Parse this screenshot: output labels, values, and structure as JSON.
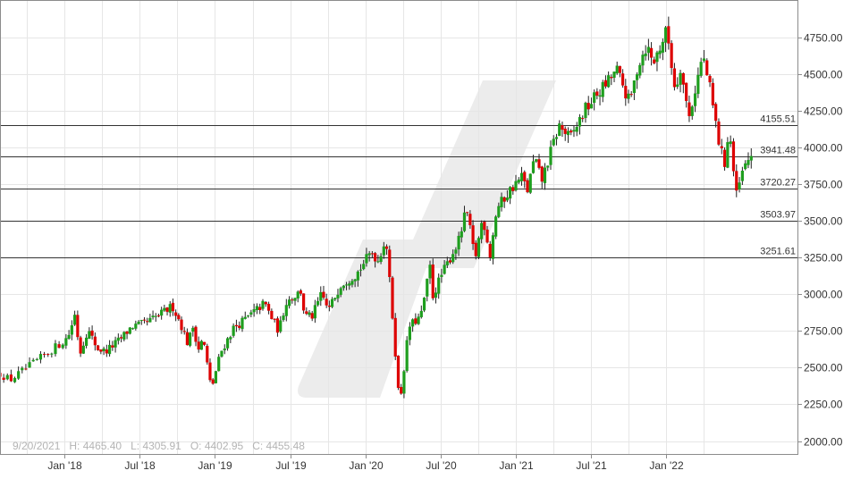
{
  "chart_data": {
    "type": "candlestick",
    "title": "",
    "xlabel": "",
    "ylabel": "",
    "ylim": [
      1920,
      5000
    ],
    "grid": true,
    "y_ticks": [
      2000,
      2250,
      2500,
      2750,
      3000,
      3250,
      3500,
      3750,
      4000,
      4250,
      4500,
      4750
    ],
    "y_tick_labels": [
      "2000.00",
      "2250.00",
      "2500.00",
      "2750.00",
      "3000.00",
      "3250.00",
      "3500.00",
      "3750.00",
      "4000.00",
      "4250.00",
      "4500.00",
      "4750.00"
    ],
    "x_ticks": [
      {
        "label": "Jan '18",
        "date": "2018-01-01"
      },
      {
        "label": "Jul '18",
        "date": "2018-07-01"
      },
      {
        "label": "Jan '19",
        "date": "2019-01-01"
      },
      {
        "label": "Jul '19",
        "date": "2019-07-01"
      },
      {
        "label": "Jan '20",
        "date": "2020-01-01"
      },
      {
        "label": "Jul '20",
        "date": "2020-07-01"
      },
      {
        "label": "Jan '21",
        "date": "2021-01-01"
      },
      {
        "label": "Jul '21",
        "date": "2021-07-01"
      },
      {
        "label": "Jan '22",
        "date": "2022-01-01"
      }
    ],
    "horizontal_levels": [
      {
        "value": 4155.51,
        "label": "4155.51"
      },
      {
        "value": 3941.48,
        "label": "3941.48"
      },
      {
        "value": 3720.27,
        "label": "3720.27"
      },
      {
        "value": 3503.97,
        "label": "3503.97"
      },
      {
        "value": 3251.61,
        "label": "3251.61"
      }
    ],
    "crosshair_info": {
      "date": "9/20/2021",
      "high": "4465.40",
      "low": "4305.91",
      "open": "4402.95",
      "close": "4455.48"
    },
    "info_text": "9/20/2021   H: 4465.40   L: 4305.91   O: 4402.95   C: 4455.48",
    "up_color": "#1e9e1e",
    "down_color": "#dd0000",
    "close_path": [
      [
        "2017-09-01",
        2460
      ],
      [
        "2017-09-20",
        2415
      ],
      [
        "2017-10-15",
        2480
      ],
      [
        "2017-11-15",
        2560
      ],
      [
        "2017-12-15",
        2640
      ],
      [
        "2018-01-10",
        2710
      ],
      [
        "2018-01-26",
        2860
      ],
      [
        "2018-02-08",
        2600
      ],
      [
        "2018-02-26",
        2760
      ],
      [
        "2018-03-22",
        2630
      ],
      [
        "2018-04-10",
        2610
      ],
      [
        "2018-05-15",
        2690
      ],
      [
        "2018-06-12",
        2780
      ],
      [
        "2018-07-15",
        2800
      ],
      [
        "2018-08-20",
        2860
      ],
      [
        "2018-09-20",
        2920
      ],
      [
        "2018-10-10",
        2800
      ],
      [
        "2018-10-29",
        2650
      ],
      [
        "2018-11-07",
        2800
      ],
      [
        "2018-11-23",
        2630
      ],
      [
        "2018-12-04",
        2700
      ],
      [
        "2018-12-24",
        2350
      ],
      [
        "2019-01-15",
        2600
      ],
      [
        "2019-02-15",
        2770
      ],
      [
        "2019-03-20",
        2840
      ],
      [
        "2019-04-30",
        2940
      ],
      [
        "2019-05-15",
        2850
      ],
      [
        "2019-06-03",
        2750
      ],
      [
        "2019-06-20",
        2950
      ],
      [
        "2019-07-26",
        3020
      ],
      [
        "2019-08-05",
        2850
      ],
      [
        "2019-08-23",
        2850
      ],
      [
        "2019-09-15",
        3000
      ],
      [
        "2019-10-02",
        2890
      ],
      [
        "2019-11-01",
        3070
      ],
      [
        "2019-12-10",
        3140
      ],
      [
        "2020-01-15",
        3290
      ],
      [
        "2020-01-31",
        3230
      ],
      [
        "2020-02-19",
        3390
      ],
      [
        "2020-03-09",
        2750
      ],
      [
        "2020-03-23",
        2240
      ],
      [
        "2020-04-15",
        2780
      ],
      [
        "2020-05-14",
        2850
      ],
      [
        "2020-06-08",
        3230
      ],
      [
        "2020-06-12",
        2990
      ],
      [
        "2020-07-01",
        3120
      ],
      [
        "2020-08-15",
        3370
      ],
      [
        "2020-09-02",
        3580
      ],
      [
        "2020-09-23",
        3240
      ],
      [
        "2020-10-12",
        3530
      ],
      [
        "2020-10-30",
        3270
      ],
      [
        "2020-11-15",
        3580
      ],
      [
        "2020-12-15",
        3700
      ],
      [
        "2021-01-15",
        3800
      ],
      [
        "2021-01-29",
        3710
      ],
      [
        "2021-02-15",
        3930
      ],
      [
        "2021-03-04",
        3770
      ],
      [
        "2021-04-15",
        4150
      ],
      [
        "2021-05-12",
        4060
      ],
      [
        "2021-06-15",
        4250
      ],
      [
        "2021-07-15",
        4360
      ],
      [
        "2021-08-15",
        4460
      ],
      [
        "2021-09-02",
        4530
      ],
      [
        "2021-09-20",
        4400
      ],
      [
        "2021-10-04",
        4300
      ],
      [
        "2021-10-25",
        4570
      ],
      [
        "2021-11-15",
        4700
      ],
      [
        "2021-11-30",
        4570
      ],
      [
        "2022-01-03",
        4800
      ],
      [
        "2022-01-24",
        4360
      ],
      [
        "2022-02-02",
        4590
      ],
      [
        "2022-02-24",
        4200
      ],
      [
        "2022-03-29",
        4630
      ],
      [
        "2022-04-15",
        4400
      ],
      [
        "2022-05-09",
        3990
      ],
      [
        "2022-05-20",
        3900
      ],
      [
        "2022-05-31",
        4130
      ],
      [
        "2022-06-16",
        3660
      ],
      [
        "2022-06-30",
        3820
      ],
      [
        "2022-07-22",
        3960
      ]
    ]
  }
}
